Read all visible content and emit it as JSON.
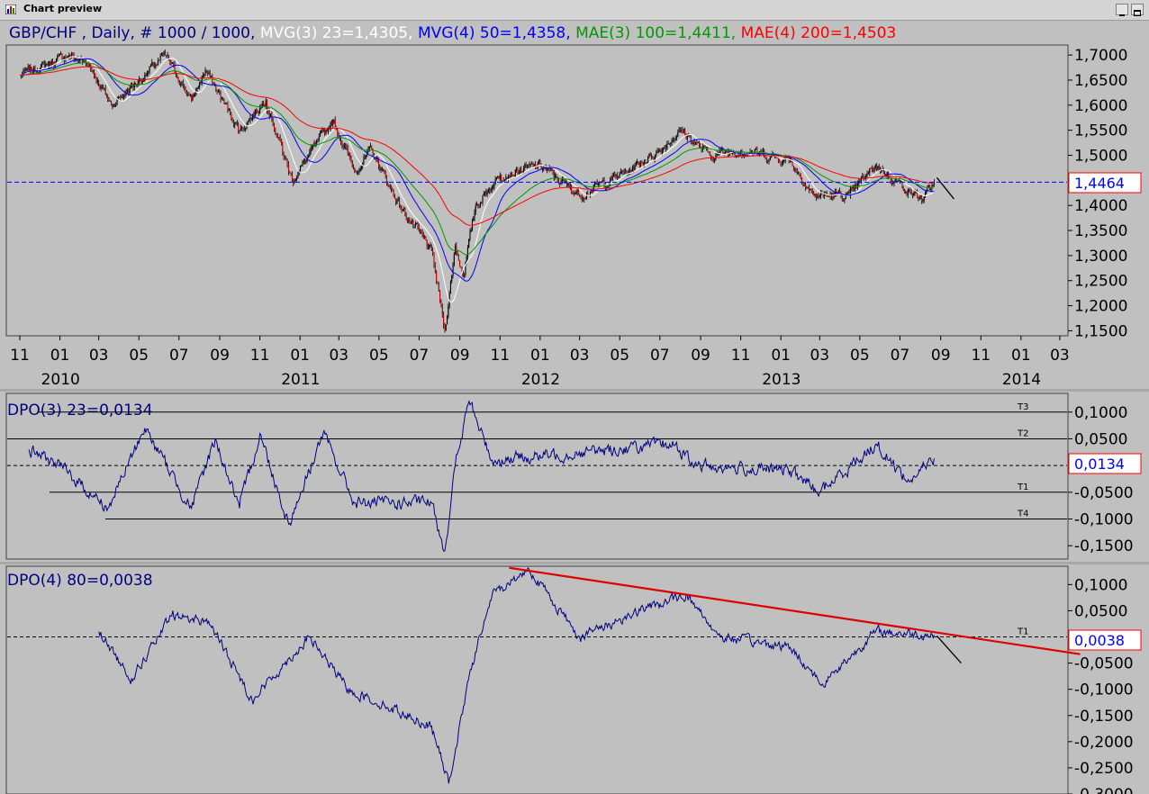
{
  "window": {
    "title": "Chart preview"
  },
  "colors": {
    "ma3": "#ffffff",
    "ma4": "#0000ff",
    "mae3": "#009900",
    "mae4": "#ff0000",
    "dpo": "#000080",
    "trend": "#dd0000",
    "current": "#0000ff"
  },
  "price_panel": {
    "header_parts": [
      {
        "text": "GBP/CHF , Daily, # 1000 / 1000, ",
        "color": "#000080"
      },
      {
        "text": "MVG(3) 23=1,4305, ",
        "color": "#ffffff"
      },
      {
        "text": "MVG(4) 50=1,4358, ",
        "color": "#0000ff"
      },
      {
        "text": "MAE(3) 100=1,4411, ",
        "color": "#009900"
      },
      {
        "text": "MAE(4) 200=1,4503",
        "color": "#ff0000"
      }
    ],
    "current_label": "1,4464"
  },
  "dpo3_panel": {
    "header": "DPO(3) 23=0,0134",
    "current_label": "0,0134"
  },
  "dpo4_panel": {
    "header": "DPO(4) 80=0,0038",
    "current_label": "0,0038"
  },
  "chart_data": [
    {
      "type": "candlestick",
      "title": "GBP/CHF , Daily, # 1000 / 1000",
      "x_axis": {
        "month_ticks": [
          "11",
          "01",
          "03",
          "05",
          "07",
          "09",
          "11",
          "01",
          "03",
          "05",
          "07",
          "09",
          "11",
          "01",
          "03",
          "05",
          "07",
          "09",
          "11",
          "01",
          "03",
          "05",
          "07",
          "09",
          "11",
          "01",
          "03"
        ],
        "year_labels": [
          "2010",
          "2011",
          "2012",
          "2013",
          "2014"
        ]
      },
      "y_ticks": [
        "1,7000",
        "1,6500",
        "1,6000",
        "1,5500",
        "1,5000",
        "1,4500",
        "1,4000",
        "1,3500",
        "1,3000",
        "1,2500",
        "1,2000",
        "1,1500"
      ],
      "ylim": [
        1.14,
        1.72
      ],
      "current_value": 1.4464,
      "key_points": [
        {
          "date": "2009-11-01",
          "v": 1.66
        },
        {
          "date": "2010-01-15",
          "v": 1.7
        },
        {
          "date": "2010-02-15",
          "v": 1.68
        },
        {
          "date": "2010-03-20",
          "v": 1.6
        },
        {
          "date": "2010-05-10",
          "v": 1.66
        },
        {
          "date": "2010-06-10",
          "v": 1.7
        },
        {
          "date": "2010-07-20",
          "v": 1.61
        },
        {
          "date": "2010-08-10",
          "v": 1.67
        },
        {
          "date": "2010-10-01",
          "v": 1.55
        },
        {
          "date": "2010-11-10",
          "v": 1.61
        },
        {
          "date": "2010-12-20",
          "v": 1.45
        },
        {
          "date": "2011-02-20",
          "v": 1.57
        },
        {
          "date": "2011-03-25",
          "v": 1.47
        },
        {
          "date": "2011-04-20",
          "v": 1.51
        },
        {
          "date": "2011-06-01",
          "v": 1.4
        },
        {
          "date": "2011-07-20",
          "v": 1.31
        },
        {
          "date": "2011-08-09",
          "v": 1.15
        },
        {
          "date": "2011-08-25",
          "v": 1.32
        },
        {
          "date": "2011-09-06",
          "v": 1.26
        },
        {
          "date": "2011-09-25",
          "v": 1.4
        },
        {
          "date": "2011-11-01",
          "v": 1.46
        },
        {
          "date": "2012-01-01",
          "v": 1.48
        },
        {
          "date": "2012-03-01",
          "v": 1.42
        },
        {
          "date": "2012-05-15",
          "v": 1.47
        },
        {
          "date": "2012-07-01",
          "v": 1.51
        },
        {
          "date": "2012-08-01",
          "v": 1.55
        },
        {
          "date": "2012-09-15",
          "v": 1.5
        },
        {
          "date": "2012-11-01",
          "v": 1.51
        },
        {
          "date": "2013-01-15",
          "v": 1.49
        },
        {
          "date": "2013-02-20",
          "v": 1.42
        },
        {
          "date": "2013-04-15",
          "v": 1.42
        },
        {
          "date": "2013-05-25",
          "v": 1.48
        },
        {
          "date": "2013-07-15",
          "v": 1.43
        },
        {
          "date": "2013-08-05",
          "v": 1.41
        },
        {
          "date": "2013-08-22",
          "v": 1.4464
        }
      ],
      "moving_averages": [
        {
          "name": "MVG(3) 23",
          "value": 1.4305
        },
        {
          "name": "MVG(4) 50",
          "value": 1.4358
        },
        {
          "name": "MAE(3) 100",
          "value": 1.4411
        },
        {
          "name": "MAE(4) 200",
          "value": 1.4503
        }
      ]
    },
    {
      "type": "line",
      "title": "DPO(3) 23",
      "value": 0.0134,
      "y_ticks": [
        "0,1000",
        "0,0500",
        "-0,0500",
        "-0,1000",
        "-0,1500"
      ],
      "ylim": [
        -0.175,
        0.135
      ],
      "reference_lines": [
        {
          "label": "T3",
          "value": 0.1
        },
        {
          "label": "T2",
          "value": 0.05
        },
        {
          "label": "T1",
          "value": -0.05
        },
        {
          "label": "T4",
          "value": -0.1
        }
      ],
      "key_points": [
        {
          "date": "2009-11-15",
          "v": 0.03
        },
        {
          "date": "2010-01-01",
          "v": 0.0
        },
        {
          "date": "2010-03-15",
          "v": -0.08
        },
        {
          "date": "2010-05-10",
          "v": 0.07
        },
        {
          "date": "2010-07-20",
          "v": -0.08
        },
        {
          "date": "2010-08-25",
          "v": 0.05
        },
        {
          "date": "2010-10-01",
          "v": -0.08
        },
        {
          "date": "2010-11-01",
          "v": 0.06
        },
        {
          "date": "2010-12-15",
          "v": -0.11
        },
        {
          "date": "2011-02-05",
          "v": 0.06
        },
        {
          "date": "2011-03-25",
          "v": -0.07
        },
        {
          "date": "2011-07-20",
          "v": -0.07
        },
        {
          "date": "2011-08-09",
          "v": -0.16
        },
        {
          "date": "2011-08-25",
          "v": 0.0
        },
        {
          "date": "2011-09-15",
          "v": 0.12
        },
        {
          "date": "2011-10-20",
          "v": 0.01
        },
        {
          "date": "2012-07-25",
          "v": 0.04
        },
        {
          "date": "2012-08-20",
          "v": 0.0
        },
        {
          "date": "2013-01-15",
          "v": -0.01
        },
        {
          "date": "2013-03-01",
          "v": -0.05
        },
        {
          "date": "2013-05-25",
          "v": 0.04
        },
        {
          "date": "2013-07-15",
          "v": -0.03
        },
        {
          "date": "2013-08-22",
          "v": 0.0134
        }
      ]
    },
    {
      "type": "line",
      "title": "DPO(4) 80",
      "value": 0.0038,
      "y_ticks": [
        "0,1000",
        "0,0500",
        "-0,0500",
        "-0,1000",
        "-0,1500",
        "-0,2000",
        "-0,2500",
        "-0,3000"
      ],
      "ylim": [
        -0.3,
        0.135
      ],
      "reference_lines": [
        {
          "label": "T1",
          "value": 0.0
        }
      ],
      "trendline": [
        {
          "date": "2011-11-15",
          "v": 0.132
        },
        {
          "date": "2014-04-01",
          "v": -0.033
        }
      ],
      "key_points": [
        {
          "date": "2010-03-01",
          "v": 0.01
        },
        {
          "date": "2010-04-20",
          "v": -0.08
        },
        {
          "date": "2010-06-20",
          "v": 0.04
        },
        {
          "date": "2010-08-15",
          "v": 0.03
        },
        {
          "date": "2010-10-20",
          "v": -0.12
        },
        {
          "date": "2011-01-15",
          "v": 0.0
        },
        {
          "date": "2011-03-15",
          "v": -0.1
        },
        {
          "date": "2011-07-20",
          "v": -0.17
        },
        {
          "date": "2011-08-15",
          "v": -0.28
        },
        {
          "date": "2011-09-20",
          "v": -0.05
        },
        {
          "date": "2011-10-20",
          "v": 0.08
        },
        {
          "date": "2011-12-15",
          "v": 0.13
        },
        {
          "date": "2012-03-01",
          "v": 0.0
        },
        {
          "date": "2012-06-01",
          "v": 0.05
        },
        {
          "date": "2012-08-10",
          "v": 0.08
        },
        {
          "date": "2012-10-01",
          "v": 0.0
        },
        {
          "date": "2013-01-15",
          "v": -0.02
        },
        {
          "date": "2013-03-05",
          "v": -0.09
        },
        {
          "date": "2013-05-25",
          "v": 0.01
        },
        {
          "date": "2013-08-22",
          "v": 0.0038
        }
      ]
    }
  ]
}
